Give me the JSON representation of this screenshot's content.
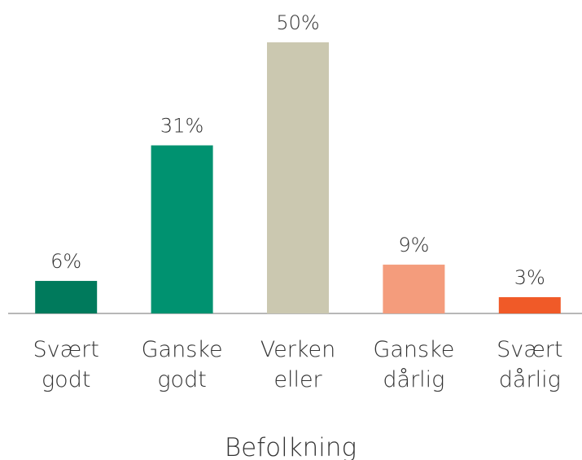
{
  "chart_data": {
    "type": "bar",
    "x_label": "Befolkning",
    "categories": [
      "Svært godt",
      "Ganske godt",
      "Verken eller",
      "Ganske dårlig",
      "Svært dårlig"
    ],
    "values": [
      6,
      31,
      50,
      9,
      3
    ],
    "value_labels": [
      "6%",
      "31%",
      "50%",
      "9%",
      "3%"
    ],
    "colors": [
      "#007a5c",
      "#009270",
      "#cbc8b0",
      "#f49c7c",
      "#f05a28"
    ]
  }
}
